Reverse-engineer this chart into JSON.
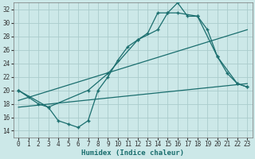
{
  "xlabel": "Humidex (Indice chaleur)",
  "xlim": [
    -0.5,
    23.5
  ],
  "ylim": [
    13,
    33
  ],
  "yticks": [
    14,
    16,
    18,
    20,
    22,
    24,
    26,
    28,
    30,
    32
  ],
  "xticks": [
    0,
    1,
    2,
    3,
    4,
    5,
    6,
    7,
    8,
    9,
    10,
    11,
    12,
    13,
    14,
    15,
    16,
    17,
    18,
    19,
    20,
    21,
    22,
    23
  ],
  "bg_color": "#cce8e8",
  "grid_color": "#aacccc",
  "line_color": "#1a6e6e",
  "line1_x": [
    0,
    1,
    2,
    3,
    4,
    5,
    6,
    7,
    8,
    9,
    10,
    11,
    12,
    13,
    14,
    15,
    16,
    17,
    18,
    19,
    20,
    21,
    22,
    23
  ],
  "line1_y": [
    20.0,
    19.0,
    18.0,
    17.5,
    15.5,
    15.0,
    14.5,
    15.5,
    20.0,
    22.0,
    24.5,
    26.5,
    27.5,
    28.5,
    31.5,
    31.5,
    33.0,
    31.0,
    31.0,
    29.0,
    25.0,
    22.5,
    21.0,
    20.5
  ],
  "line2_x": [
    0,
    3,
    7,
    9,
    12,
    14,
    15,
    16,
    18,
    20,
    22,
    23
  ],
  "line2_y": [
    20.0,
    17.5,
    20.0,
    22.5,
    27.5,
    29.0,
    31.5,
    31.5,
    31.0,
    25.0,
    21.0,
    20.5
  ],
  "line3_x": [
    0,
    23
  ],
  "line3_y": [
    18.5,
    29.0
  ],
  "line4_x": [
    0,
    23
  ],
  "line4_y": [
    17.5,
    21.0
  ]
}
